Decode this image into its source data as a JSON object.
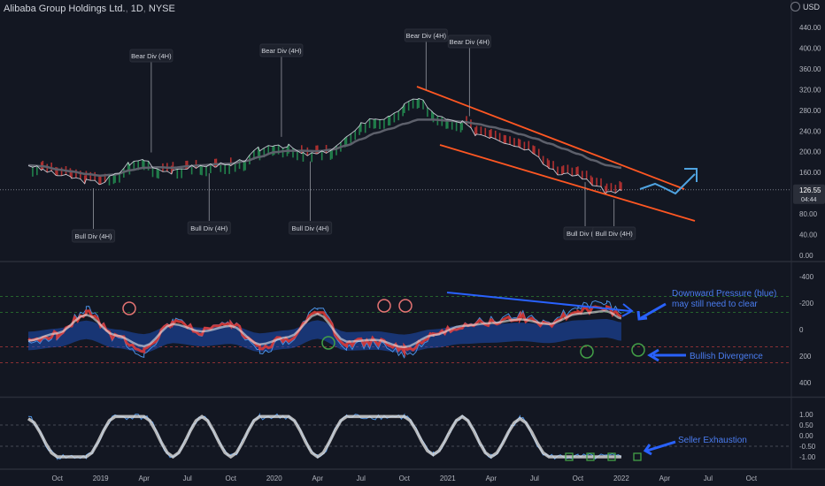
{
  "header": {
    "symbol": "Alibaba Group Holdings Ltd.",
    "interval": "1D",
    "exchange": "NYSE"
  },
  "currency": "USD",
  "price_tag": {
    "price": "126.55",
    "countdown": "04:44"
  },
  "x_axis_ticks": [
    "Oct",
    "2019",
    "Apr",
    "Jul",
    "Oct",
    "2020",
    "Apr",
    "Jul",
    "Oct",
    "2021",
    "Apr",
    "Jul",
    "Oct",
    "2022",
    "Apr",
    "Jul",
    "Oct"
  ],
  "colors": {
    "background": "#131722",
    "bull": "#26a65b",
    "bear": "#e53935",
    "channel": "#ff5722",
    "ma": "#5d606b",
    "annotation_blue": "#2962ff",
    "arrow_blue": "#4fa3e0"
  },
  "chart_data": [
    {
      "type": "line",
      "title": "Alibaba Group Holdings Ltd., 1D, NYSE",
      "xlabel": "",
      "ylabel": "",
      "y_scale": "log",
      "ylim": [
        0,
        440
      ],
      "y_ticks": [
        0,
        40,
        80,
        120,
        160,
        200,
        240,
        280,
        320,
        360,
        400,
        440
      ],
      "x": [
        "2018-08",
        "2018-09",
        "2018-10",
        "2018-11",
        "2018-12",
        "2019-01",
        "2019-02",
        "2019-03",
        "2019-04",
        "2019-05",
        "2019-06",
        "2019-07",
        "2019-08",
        "2019-09",
        "2019-10",
        "2019-11",
        "2019-12",
        "2020-01",
        "2020-02",
        "2020-03",
        "2020-04",
        "2020-05",
        "2020-06",
        "2020-07",
        "2020-08",
        "2020-09",
        "2020-10",
        "2020-11",
        "2020-12",
        "2021-01",
        "2021-02",
        "2021-03",
        "2021-04",
        "2021-05",
        "2021-06",
        "2021-07",
        "2021-08",
        "2021-09",
        "2021-10",
        "2021-11",
        "2021-12",
        "2022-01"
      ],
      "series": [
        {
          "values": [
            175,
            165,
            155,
            150,
            143,
            140,
            155,
            178,
            185,
            168,
            160,
            170,
            172,
            175,
            172,
            185,
            205,
            215,
            210,
            195,
            195,
            205,
            225,
            255,
            265,
            265,
            290,
            305,
            275,
            260,
            255,
            235,
            230,
            220,
            210,
            200,
            170,
            155,
            155,
            138,
            122,
            125
          ]
        },
        {
          "values": [
            170,
            168,
            162,
            158,
            153,
            150,
            152,
            160,
            165,
            166,
            165,
            168,
            170,
            172,
            173,
            178,
            186,
            195,
            198,
            198,
            197,
            200,
            208,
            220,
            232,
            240,
            250,
            258,
            258,
            256,
            254,
            250,
            244,
            238,
            230,
            222,
            212,
            202,
            192,
            180,
            170,
            165
          ]
        }
      ],
      "annotations": [
        {
          "label": "Bear Div (4H)",
          "date": "2019-04"
        },
        {
          "label": "Bear Div (4H)",
          "date": "2020-01"
        },
        {
          "label": "Bear Div (4H)",
          "date": "2020-11"
        },
        {
          "label": "Bear Div (4H)",
          "date": "2021-02"
        },
        {
          "label": "Bull Div (4H)",
          "date": "2018-12"
        },
        {
          "label": "Bull Div (4H)",
          "date": "2019-08"
        },
        {
          "label": "Bull Div (4H)",
          "date": "2020-03"
        },
        {
          "label": "Bull Div (4H)",
          "date": "2021-10"
        },
        {
          "label": "Bull Div (4H)",
          "date": "2021-12"
        }
      ]
    },
    {
      "type": "line",
      "title": "",
      "ylim": [
        -500,
        500
      ],
      "y_ticks": [
        400,
        200,
        0,
        -200,
        -400
      ],
      "dashed_levels": [
        250,
        130,
        -130,
        -250
      ],
      "x": [
        "2018-08",
        "2018-10",
        "2018-12",
        "2019-02",
        "2019-04",
        "2019-06",
        "2019-08",
        "2019-10",
        "2019-12",
        "2020-02",
        "2020-04",
        "2020-06",
        "2020-08",
        "2020-10",
        "2020-12",
        "2021-02",
        "2021-04",
        "2021-06",
        "2021-08",
        "2021-10",
        "2021-12",
        "2022-01"
      ],
      "series": [
        {
          "values": [
            120,
            40,
            -160,
            60,
            180,
            -60,
            20,
            -40,
            160,
            80,
            -170,
            130,
            110,
            190,
            60,
            -40,
            -70,
            -110,
            -60,
            -170,
            -200,
            -120
          ]
        }
      ],
      "annotations": [
        {
          "label": "Downward Pressure (blue) may still need to clear"
        },
        {
          "label": "Bullish Divergence"
        }
      ]
    },
    {
      "type": "line",
      "title": "",
      "ylim": [
        -1.4,
        1.4
      ],
      "y_ticks": [
        1.0,
        0.5,
        0.0,
        -0.5,
        -1.0
      ],
      "x": [
        "2018-08",
        "2018-10",
        "2018-12",
        "2019-02",
        "2019-04",
        "2019-06",
        "2019-08",
        "2019-10",
        "2019-12",
        "2020-02",
        "2020-04",
        "2020-06",
        "2020-08",
        "2020-10",
        "2020-12",
        "2021-02",
        "2021-04",
        "2021-06",
        "2021-08",
        "2021-10",
        "2021-12",
        "2022-01"
      ],
      "series": [
        {
          "values": [
            0.8,
            -1.0,
            -1.0,
            0.9,
            0.9,
            -1.0,
            0.9,
            -1.0,
            0.9,
            0.9,
            -1.0,
            0.9,
            0.9,
            0.9,
            -0.9,
            0.9,
            -1.0,
            0.8,
            -1.0,
            -1.0,
            -1.0,
            -1.0
          ]
        }
      ],
      "annotations": [
        {
          "label": "Seller Exhaustion"
        }
      ]
    }
  ]
}
